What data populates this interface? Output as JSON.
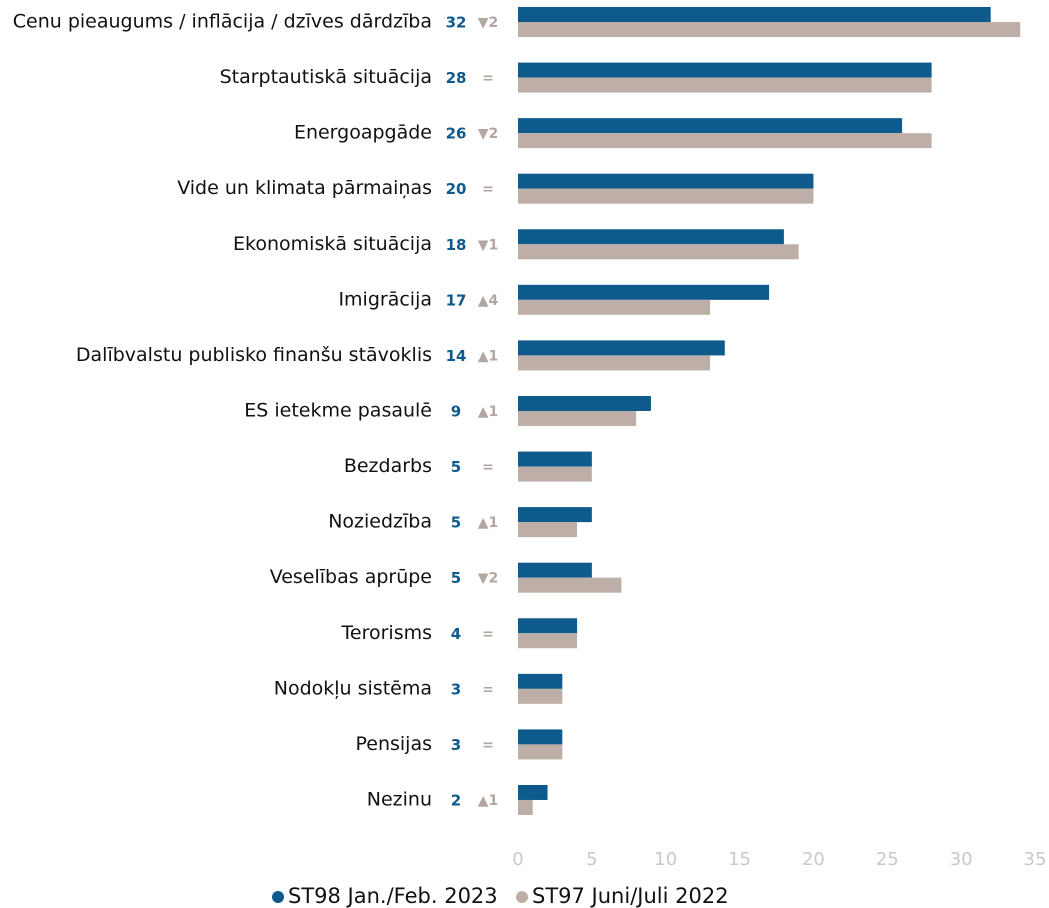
{
  "chart_data": {
    "type": "hbar",
    "categories": [
      "Cenu pieaugums / inflācija / dzīves dārdzība",
      "Starptautiskā situācija",
      "Energoapgāde",
      "Vide un klimata pārmaiņas",
      "Ekonomiskā situācija",
      "Imigrācija",
      "Dalībvalstu publisko finanšu stāvoklis",
      "ES ietekme pasaulē",
      "Bezdarbs",
      "Noziedzība",
      "Veselības aprūpe",
      "Terorisms",
      "Nodokļu sistēma",
      "Pensijas",
      "Nezinu"
    ],
    "series": [
      {
        "name": "ST98 Jan./Feb. 2023",
        "color": "#0f5a8c",
        "values": [
          32,
          28,
          26,
          20,
          18,
          17,
          14,
          9,
          5,
          5,
          5,
          4,
          3,
          3,
          2
        ]
      },
      {
        "name": "ST97 Juni/Juli 2022",
        "color": "#bdafa8",
        "values": [
          34,
          28,
          28,
          20,
          19,
          13,
          13,
          8,
          5,
          4,
          7,
          4,
          3,
          3,
          1
        ]
      }
    ],
    "changes": [
      "▼2",
      "=",
      "▼2",
      "=",
      "▼1",
      "▲4",
      "▲1",
      "▲1",
      "=",
      "▲1",
      "▼2",
      "=",
      "=",
      "=",
      "▲1"
    ],
    "xlim": [
      0,
      35
    ],
    "xticks": [
      0,
      5,
      10,
      15,
      20,
      25,
      30,
      35
    ],
    "grid": false,
    "legend": "bottom"
  }
}
